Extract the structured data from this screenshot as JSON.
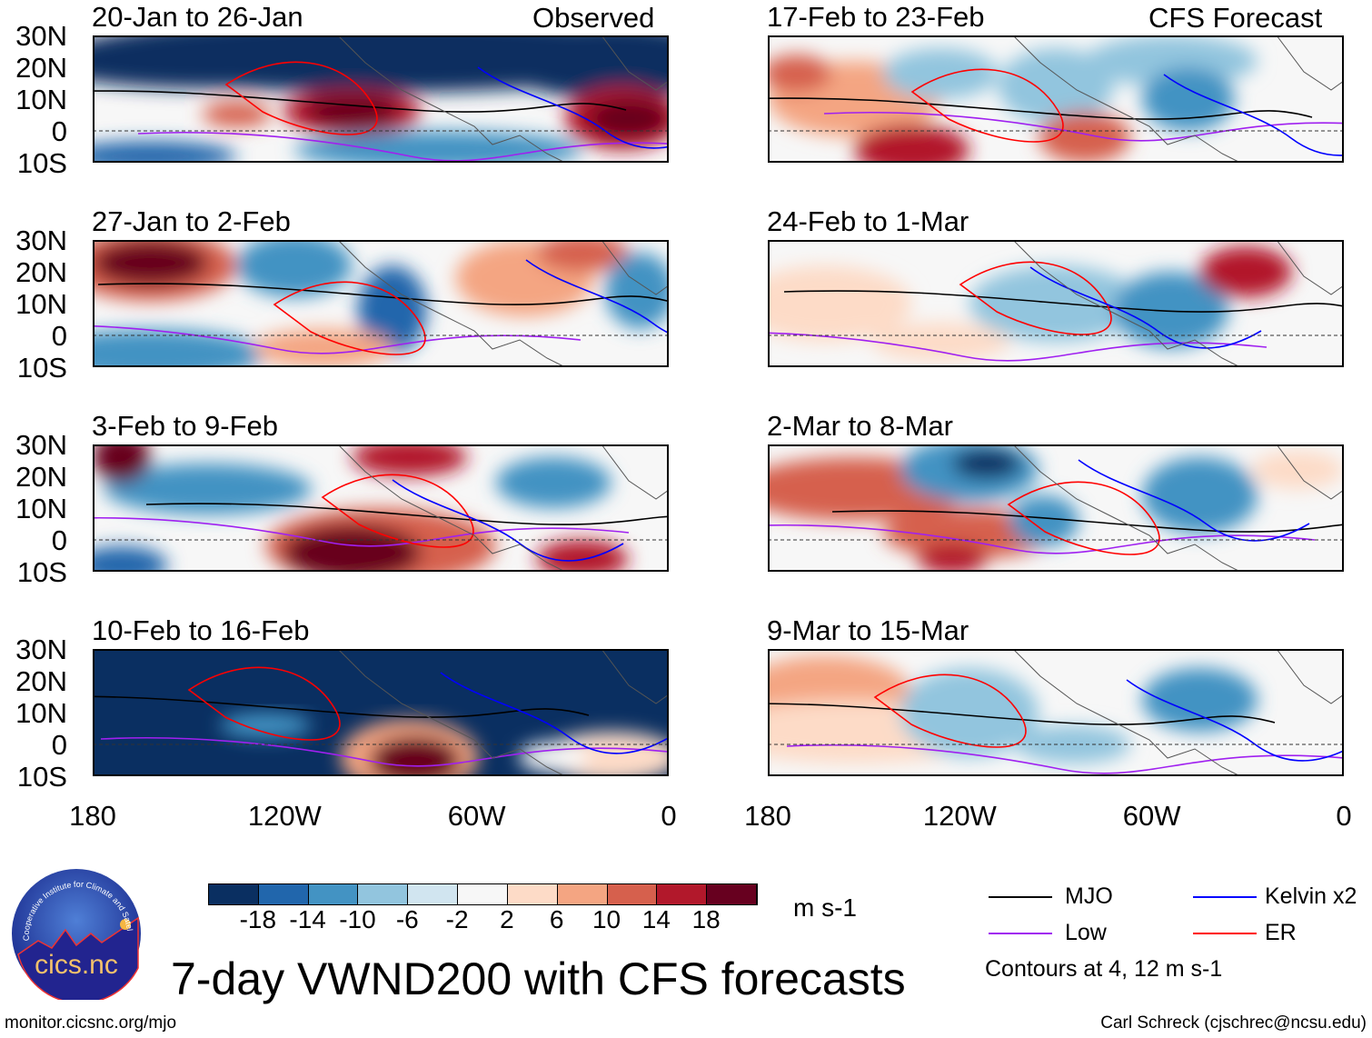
{
  "chart_data": {
    "type": "heatmap",
    "title": "7-day VWND200 with CFS forecasts",
    "variable": "200-hPa meridional wind anomaly",
    "units": "m s-1",
    "lat_ticks": [
      "30N",
      "20N",
      "10N",
      "0",
      "10S"
    ],
    "lon_ticks": [
      "180",
      "120W",
      "60W",
      "0"
    ],
    "ylim": [
      -10,
      30
    ],
    "xlim": [
      -180,
      0
    ],
    "columns": [
      {
        "label": "Observed",
        "panels": [
          {
            "title": "20-Jan to 26-Jan"
          },
          {
            "title": "27-Jan to 2-Feb"
          },
          {
            "title": "3-Feb to 9-Feb"
          },
          {
            "title": "10-Feb to 16-Feb"
          }
        ]
      },
      {
        "label": "CFS Forecast",
        "panels": [
          {
            "title": "17-Feb to 23-Feb"
          },
          {
            "title": "24-Feb to 1-Mar"
          },
          {
            "title": "2-Mar to 8-Mar"
          },
          {
            "title": "9-Mar to 15-Mar"
          }
        ]
      }
    ],
    "colorbar": {
      "levels": [
        "-18",
        "-14",
        "-10",
        "-6",
        "-2",
        "2",
        "6",
        "10",
        "14",
        "18"
      ],
      "colors": [
        "#0a2f61",
        "#2166ac",
        "#4393c3",
        "#92c5de",
        "#d1e5f0",
        "#f7f7f7",
        "#fddbc7",
        "#f4a582",
        "#d6604d",
        "#b2182b",
        "#67001f"
      ],
      "units": "m s-1"
    },
    "legend": [
      {
        "label": "MJO",
        "color": "#000000"
      },
      {
        "label": "Kelvin x2",
        "color": "#0000ff"
      },
      {
        "label": "Low",
        "color": "#a020f0"
      },
      {
        "label": "ER",
        "color": "#ff0000"
      }
    ],
    "contour_note": "Contours at 4, 12 m s-1"
  },
  "footer": {
    "left": "monitor.cicsnc.org/mjo",
    "right": "Carl Schreck (cjschrec@ncsu.edu)",
    "logo_text": "cics.nc",
    "logo_ring": "Cooperative Institute for Climate and Satellites"
  }
}
